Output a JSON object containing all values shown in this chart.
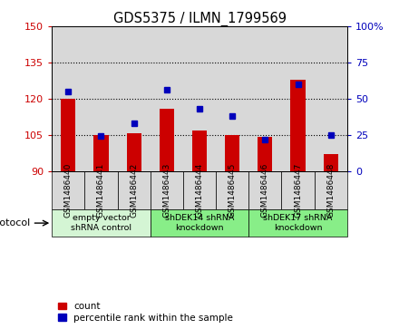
{
  "title": "GDS5375 / ILMN_1799569",
  "samples": [
    "GSM1486440",
    "GSM1486441",
    "GSM1486442",
    "GSM1486443",
    "GSM1486444",
    "GSM1486445",
    "GSM1486446",
    "GSM1486447",
    "GSM1486448"
  ],
  "counts": [
    120,
    105,
    105.5,
    116,
    107,
    105,
    104,
    128,
    97
  ],
  "percentiles": [
    55,
    24,
    33,
    56,
    43,
    38,
    22,
    60,
    25
  ],
  "ylim_left": [
    90,
    150
  ],
  "ylim_right": [
    0,
    100
  ],
  "yticks_left": [
    90,
    105,
    120,
    135,
    150
  ],
  "yticks_right": [
    0,
    25,
    50,
    75,
    100
  ],
  "ytick_labels_left": [
    "90",
    "105",
    "120",
    "135",
    "150"
  ],
  "ytick_labels_right": [
    "0",
    "25",
    "50",
    "75",
    "100%"
  ],
  "bar_color": "#cc0000",
  "dot_color": "#0000bb",
  "protocol_groups": [
    {
      "label": "empty vector\nshRNA control",
      "start": 0,
      "end": 3,
      "color": "#d4f5d4"
    },
    {
      "label": "shDEK14 shRNA\nknockdown",
      "start": 3,
      "end": 6,
      "color": "#88ee88"
    },
    {
      "label": "shDEK17 shRNA\nknockdown",
      "start": 6,
      "end": 9,
      "color": "#88ee88"
    }
  ],
  "protocol_label": "protocol",
  "legend_count": "count",
  "legend_percentile": "percentile rank within the sample",
  "bg_color": "#d8d8d8",
  "bar_width": 0.45
}
